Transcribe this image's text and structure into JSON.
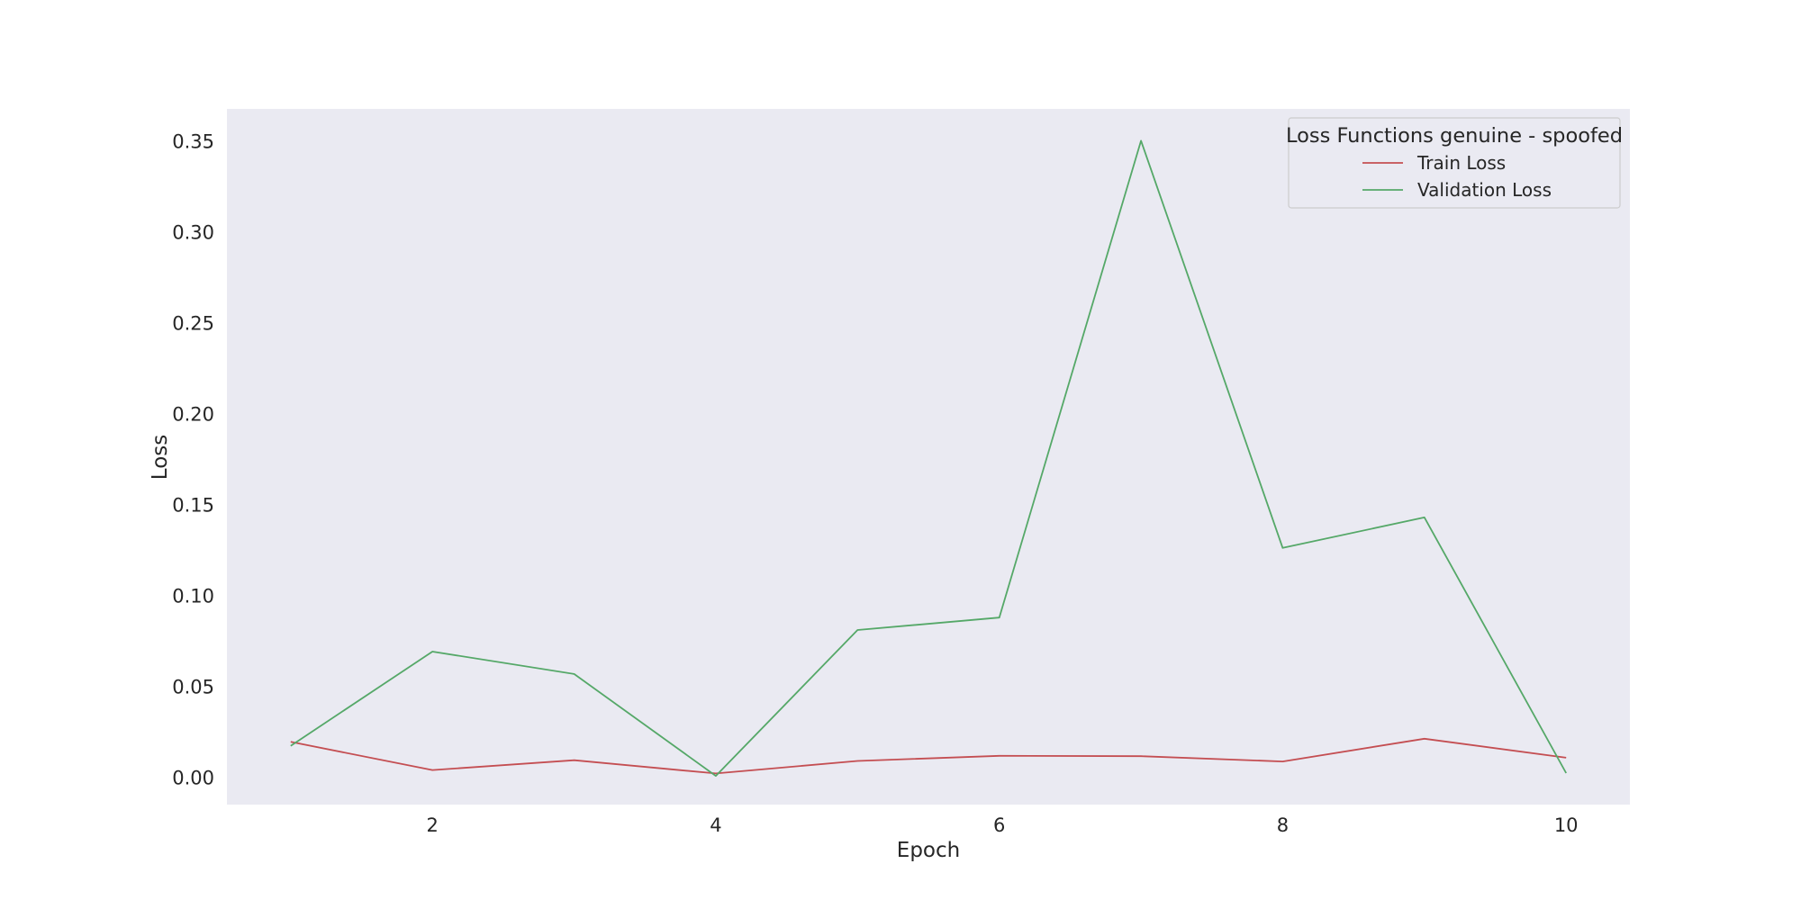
{
  "chart_data": {
    "type": "line",
    "title": "",
    "xlabel": "Epoch",
    "ylabel": "Loss",
    "x": [
      1,
      2,
      3,
      4,
      5,
      6,
      7,
      8,
      9,
      10
    ],
    "xlim": [
      0.55,
      10.45
    ],
    "ylim": [
      -0.0145,
      0.368
    ],
    "xticks": [
      2,
      4,
      6,
      8,
      10
    ],
    "xtick_labels": [
      "2",
      "4",
      "6",
      "8",
      "10"
    ],
    "yticks": [
      0.0,
      0.05,
      0.1,
      0.15,
      0.2,
      0.25,
      0.3,
      0.35
    ],
    "ytick_labels": [
      "0.00",
      "0.05",
      "0.10",
      "0.15",
      "0.20",
      "0.25",
      "0.30",
      "0.35"
    ],
    "grid": false,
    "legend": {
      "title": "Loss Functions genuine - spoofed",
      "placement": "upper right"
    },
    "series": [
      {
        "name": "Train Loss",
        "color": "#c44e52",
        "values": [
          0.02,
          0.0045,
          0.0099,
          0.0026,
          0.0095,
          0.0123,
          0.0121,
          0.0092,
          0.0217,
          0.0113
        ]
      },
      {
        "name": "Validation Loss",
        "color": "#55a868",
        "values": [
          0.0178,
          0.0696,
          0.0573,
          0.0013,
          0.0815,
          0.0883,
          0.3505,
          0.1266,
          0.1434,
          0.0028
        ]
      }
    ]
  }
}
